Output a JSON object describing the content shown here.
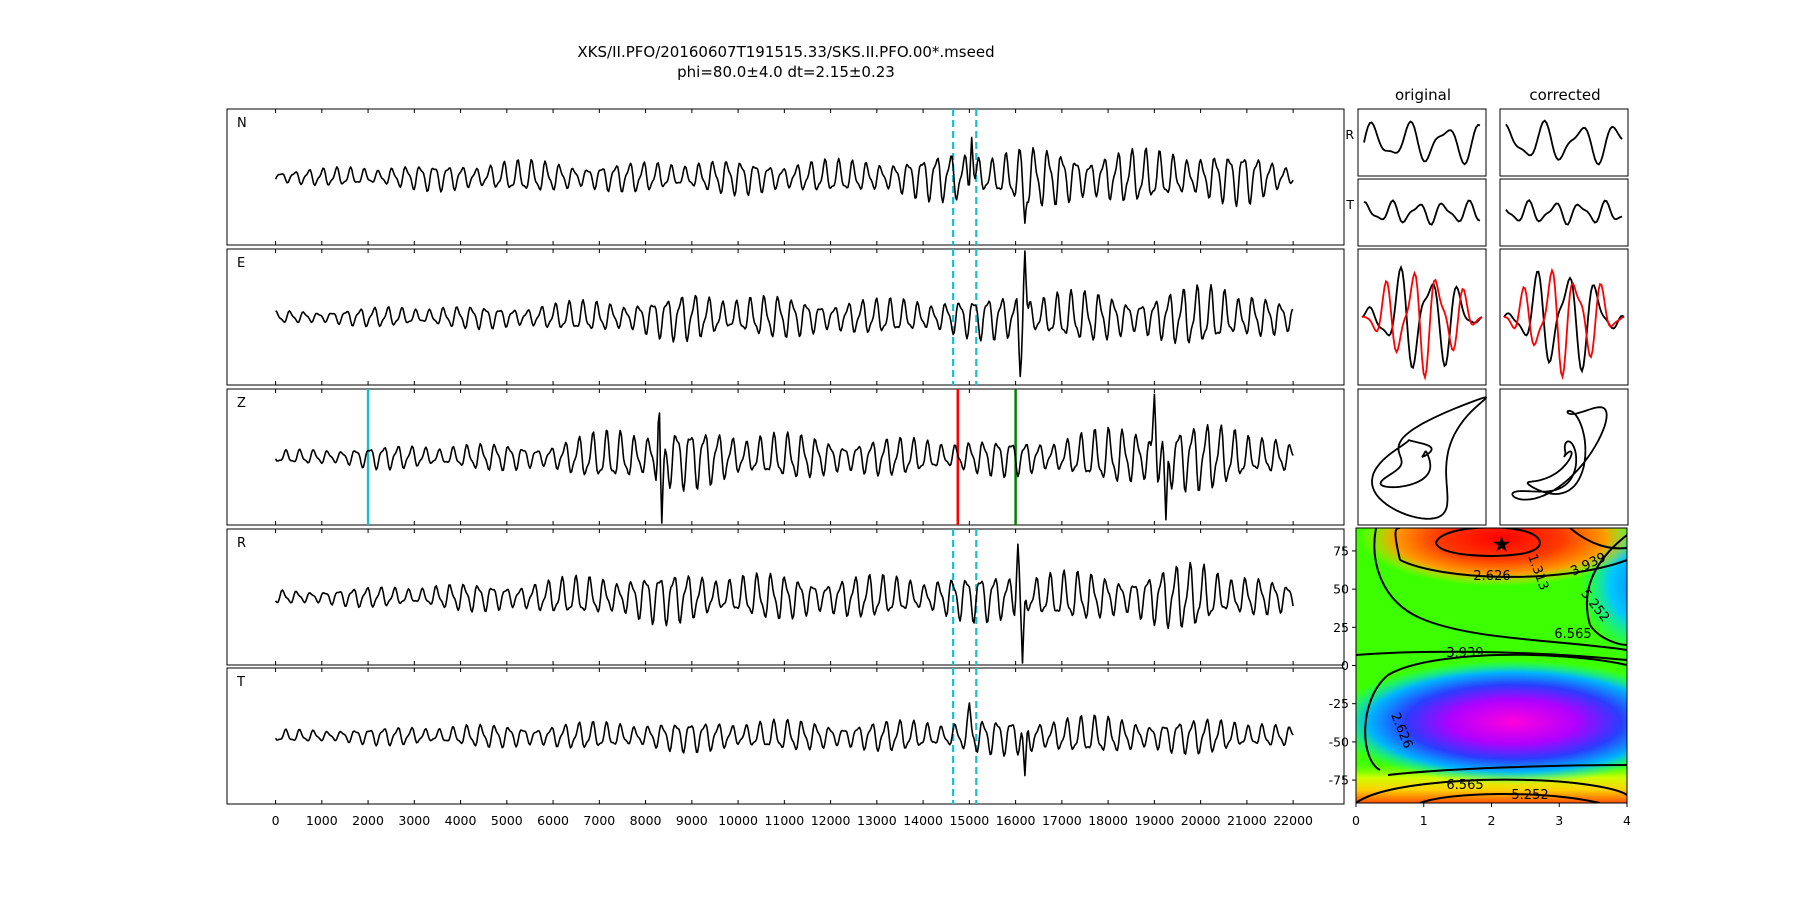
{
  "figure": {
    "title": "XKS/II.PFO/20160607T191515.33/SKS.II.PFO.00*.mseed",
    "subtitle": "phi=80.0±4.0 dt=2.15±0.23"
  },
  "chart_data": [
    {
      "type": "line",
      "name": "seismogram-traces",
      "panels": [
        "N",
        "E",
        "Z",
        "R",
        "T"
      ],
      "x_range": [
        0,
        22000
      ],
      "xlim": [
        -1050,
        23100
      ],
      "x_ticks": [
        0,
        1000,
        2000,
        3000,
        4000,
        5000,
        6000,
        7000,
        8000,
        9000,
        10000,
        11000,
        12000,
        13000,
        14000,
        15000,
        16000,
        17000,
        18000,
        19000,
        20000,
        21000,
        22000
      ],
      "window_markers": {
        "color": "#17becf",
        "style": "dashed",
        "x": [
          14650,
          15150
        ],
        "panels": [
          "N",
          "E",
          "R",
          "T"
        ]
      },
      "phase_markers": [
        {
          "x": 2000,
          "color": "#17becf"
        },
        {
          "x": 14750,
          "color": "#ff0000"
        },
        {
          "x": 16000,
          "color": "#008000"
        }
      ],
      "amplitude_envelopes": {
        "N": [
          [
            0,
            0.12
          ],
          [
            2500,
            0.2
          ],
          [
            5000,
            0.28
          ],
          [
            7500,
            0.25
          ],
          [
            10000,
            0.3
          ],
          [
            12500,
            0.28
          ],
          [
            15000,
            0.45
          ],
          [
            16500,
            0.5
          ],
          [
            19000,
            0.45
          ],
          [
            21000,
            0.45
          ],
          [
            22000,
            0.2
          ]
        ],
        "E": [
          [
            0,
            0.1
          ],
          [
            2500,
            0.18
          ],
          [
            5000,
            0.2
          ],
          [
            7500,
            0.3
          ],
          [
            9000,
            0.42
          ],
          [
            11000,
            0.35
          ],
          [
            13000,
            0.3
          ],
          [
            15000,
            0.35
          ],
          [
            16500,
            0.45
          ],
          [
            19000,
            0.4
          ],
          [
            20500,
            0.6
          ],
          [
            22000,
            0.2
          ]
        ],
        "Z": [
          [
            0,
            0.1
          ],
          [
            2000,
            0.2
          ],
          [
            4000,
            0.22
          ],
          [
            6000,
            0.25
          ],
          [
            7500,
            0.5
          ],
          [
            8500,
            0.55
          ],
          [
            10000,
            0.45
          ],
          [
            12000,
            0.35
          ],
          [
            15000,
            0.3
          ],
          [
            17000,
            0.35
          ],
          [
            19000,
            0.6
          ],
          [
            21000,
            0.55
          ],
          [
            22000,
            0.2
          ]
        ],
        "R": [
          [
            0,
            0.12
          ],
          [
            3000,
            0.2
          ],
          [
            6000,
            0.3
          ],
          [
            8000,
            0.45
          ],
          [
            10000,
            0.4
          ],
          [
            12000,
            0.38
          ],
          [
            14000,
            0.35
          ],
          [
            16000,
            0.45
          ],
          [
            18000,
            0.4
          ],
          [
            20000,
            0.6
          ],
          [
            22000,
            0.2
          ]
        ],
        "T": [
          [
            0,
            0.1
          ],
          [
            3000,
            0.17
          ],
          [
            6000,
            0.22
          ],
          [
            8000,
            0.25
          ],
          [
            10000,
            0.28
          ],
          [
            12000,
            0.25
          ],
          [
            15000,
            0.28
          ],
          [
            16500,
            0.35
          ],
          [
            19000,
            0.3
          ],
          [
            21000,
            0.3
          ],
          [
            22000,
            0.15
          ]
        ]
      },
      "spikes": {
        "N": [
          [
            15050,
            0.6
          ],
          [
            16200,
            -0.7
          ]
        ],
        "E": [
          [
            16200,
            1.0
          ],
          [
            16100,
            -0.9
          ]
        ],
        "Z": [
          [
            8300,
            1.0
          ],
          [
            8350,
            -1.0
          ],
          [
            19000,
            0.95
          ],
          [
            19250,
            -0.95
          ]
        ],
        "R": [
          [
            16050,
            0.8
          ],
          [
            16150,
            -1.0
          ]
        ],
        "T": [
          [
            15000,
            0.5
          ],
          [
            16200,
            -0.6
          ]
        ]
      }
    },
    {
      "type": "line",
      "name": "particle-motion-panels",
      "columns": [
        "original",
        "corrected"
      ],
      "row_labels": [
        "R",
        "T"
      ],
      "series_colors": [
        "#000000",
        "#ff0000"
      ]
    },
    {
      "type": "heatmap",
      "name": "error-surface",
      "xlim": [
        0,
        4
      ],
      "ylim": [
        -90,
        90
      ],
      "x_ticks": [
        0,
        1,
        2,
        3,
        4
      ],
      "y_ticks": [
        -75,
        -50,
        -25,
        0,
        25,
        50,
        75
      ],
      "contour_labels": [
        "1.313",
        "2.626",
        "3.939",
        "5.252",
        "6.565",
        "3.939",
        "2.626",
        "6.565",
        "5.252"
      ],
      "best": {
        "dt": 2.15,
        "phi": 80.0
      },
      "colormap": "gist_rainbow"
    }
  ]
}
